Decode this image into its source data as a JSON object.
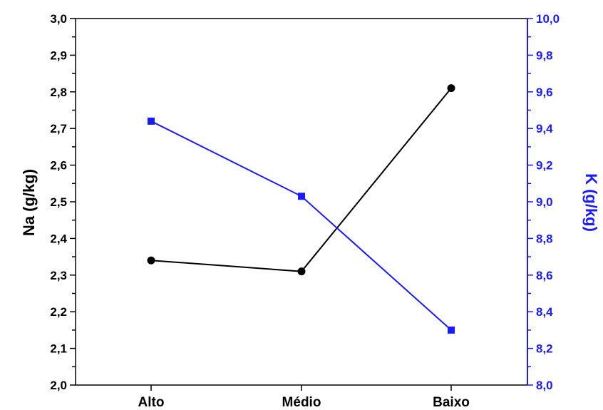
{
  "chart_data": {
    "type": "line",
    "categories": [
      "Alto",
      "Médio",
      "Baixo"
    ],
    "title": "",
    "xlabel": "",
    "y_left": {
      "label": "Na (g/kg)",
      "range": [
        2.0,
        3.0
      ],
      "ticks": [
        "2,0",
        "2,1",
        "2,2",
        "2,3",
        "2,4",
        "2,5",
        "2,6",
        "2,7",
        "2,8",
        "2,9",
        "3,0"
      ],
      "color": "#000000"
    },
    "y_right": {
      "label": "K (g/kg)",
      "range": [
        8.0,
        10.0
      ],
      "ticks": [
        "8,0",
        "8,2",
        "8,4",
        "8,6",
        "8,8",
        "9,0",
        "9,2",
        "9,4",
        "9,6",
        "9,8",
        "10,0"
      ],
      "color": "#1a1aff"
    },
    "series": [
      {
        "axis": "left",
        "color": "#000000",
        "marker": "circle",
        "values": [
          2.34,
          2.31,
          2.81
        ]
      },
      {
        "axis": "right",
        "color": "#1a1aff",
        "marker": "square",
        "values": [
          9.44,
          9.03,
          8.3
        ]
      }
    ],
    "grid": false,
    "legend": "none"
  }
}
